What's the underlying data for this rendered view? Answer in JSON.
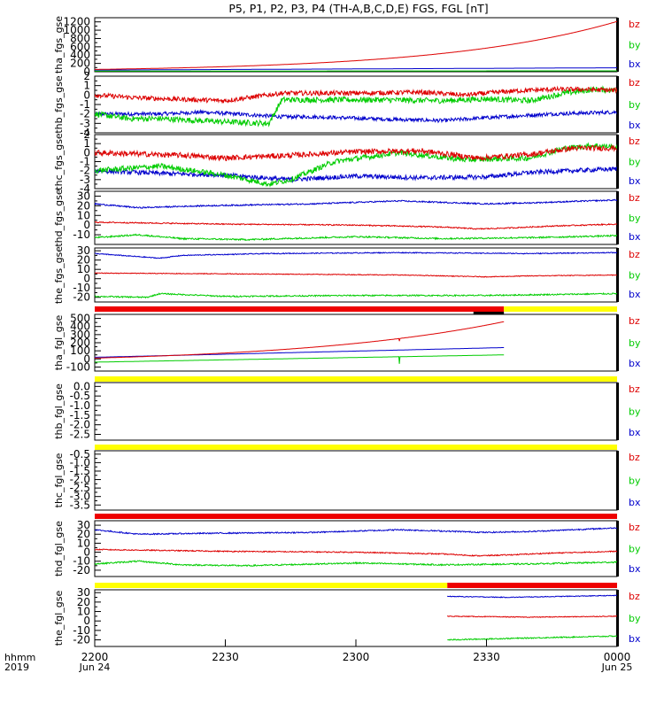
{
  "title": "P5, P1, P2, P3, P4 (TH-A,B,C,D,E) FGS, FGL [nT]",
  "colors": {
    "bz": "#dd0000",
    "by": "#00cc00",
    "bx": "#0000cc",
    "bar_red": "#ee0000",
    "bar_yellow": "#ffff00"
  },
  "time_axis": {
    "ticks": [
      "2200",
      "2230",
      "2300",
      "2330",
      "0000"
    ],
    "dates": [
      "Jun 24",
      "",
      "",
      "",
      "Jun 25"
    ],
    "label_top": "hhmm",
    "label_bottom": "2019",
    "range_minutes": [
      0,
      120
    ]
  },
  "chart_data": [
    {
      "type": "line",
      "ylabel": "tha_fgs_gse",
      "ylim": [
        0,
        1300
      ],
      "yticks": [
        "0",
        "200",
        "400",
        "600",
        "800",
        "1000",
        "1200"
      ],
      "ytick_values": [
        0,
        200,
        400,
        600,
        800,
        1000,
        1200
      ],
      "series": [
        {
          "name": "bz",
          "shape": "exp",
          "x": [
            0,
            120
          ],
          "y": [
            55,
            1210
          ],
          "k": 3.0
        },
        {
          "name": "by",
          "shape": "line",
          "x": [
            0,
            120
          ],
          "y": [
            15,
            22
          ]
        },
        {
          "name": "bx",
          "shape": "line",
          "x": [
            0,
            120
          ],
          "y": [
            40,
            95
          ]
        }
      ]
    },
    {
      "type": "line",
      "ylabel": "thb_fgs_gse",
      "ylim": [
        -4,
        2
      ],
      "yticks": [
        "-4",
        "-3",
        "-2",
        "-1",
        "0",
        "1",
        "2"
      ],
      "ytick_values": [
        -4,
        -3,
        -2,
        -1,
        0,
        1,
        2
      ],
      "series": [
        {
          "name": "bz",
          "shape": "noisy",
          "x": [
            0,
            10,
            30,
            43,
            60,
            75,
            85,
            95,
            105,
            112,
            120
          ],
          "y": [
            0.0,
            -0.3,
            -0.6,
            0.2,
            0.2,
            0.3,
            0.0,
            0.4,
            0.6,
            0.6,
            0.5
          ],
          "noise": 0.25
        },
        {
          "name": "by",
          "shape": "noisy",
          "x": [
            0,
            8,
            15,
            28,
            40,
            43,
            50,
            65,
            80,
            90,
            100,
            108,
            115,
            120
          ],
          "y": [
            -2.0,
            -2.5,
            -2.5,
            -2.8,
            -3.0,
            -0.5,
            -0.5,
            -0.5,
            -0.6,
            -0.4,
            -0.6,
            0.2,
            0.6,
            0.5
          ],
          "noise": 0.3
        },
        {
          "name": "bx",
          "shape": "noisy",
          "x": [
            0,
            15,
            25,
            43,
            50,
            70,
            80,
            90,
            105,
            120
          ],
          "y": [
            -2.0,
            -2.0,
            -1.8,
            -2.3,
            -2.3,
            -2.6,
            -2.7,
            -2.4,
            -2.0,
            -1.8
          ],
          "noise": 0.2
        }
      ]
    },
    {
      "type": "line",
      "ylabel": "thc_fgs_gse",
      "ylim": [
        -4,
        2
      ],
      "yticks": [
        "-4",
        "-3",
        "-2",
        "-1",
        "0",
        "1",
        "2"
      ],
      "ytick_values": [
        -4,
        -3,
        -2,
        -1,
        0,
        1,
        2
      ],
      "series": [
        {
          "name": "bz",
          "shape": "noisy",
          "x": [
            0,
            20,
            30,
            45,
            60,
            75,
            88,
            100,
            110,
            120
          ],
          "y": [
            0.0,
            -0.3,
            -0.6,
            -0.3,
            0.1,
            0.2,
            -0.6,
            -0.2,
            0.5,
            0.5
          ],
          "noise": 0.3
        },
        {
          "name": "by",
          "shape": "noisy",
          "x": [
            0,
            15,
            30,
            40,
            45,
            55,
            70,
            85,
            100,
            108,
            115,
            120
          ],
          "y": [
            -2.0,
            -1.5,
            -2.5,
            -3.5,
            -3.0,
            -1.0,
            0.0,
            -0.8,
            -0.6,
            0.5,
            0.8,
            0.6
          ],
          "noise": 0.3
        },
        {
          "name": "bx",
          "shape": "noisy",
          "x": [
            0,
            15,
            30,
            45,
            60,
            75,
            90,
            100,
            110,
            120
          ],
          "y": [
            -2.0,
            -2.3,
            -2.5,
            -3.0,
            -2.6,
            -2.8,
            -2.7,
            -2.2,
            -2.0,
            -1.8
          ],
          "noise": 0.25
        }
      ]
    },
    {
      "type": "line",
      "ylabel": "thd_fgs_gse",
      "ylim": [
        -20,
        35
      ],
      "yticks": [
        "-10",
        "0",
        "10",
        "20",
        "30"
      ],
      "ytick_values": [
        -10,
        0,
        10,
        20,
        30
      ],
      "series": [
        {
          "name": "bz",
          "shape": "noisy",
          "x": [
            0,
            30,
            60,
            70,
            80,
            88,
            95,
            105,
            120
          ],
          "y": [
            3,
            1,
            0,
            -1,
            -2,
            -4,
            -3,
            -1,
            1
          ],
          "noise": 0.6
        },
        {
          "name": "by",
          "shape": "noisy",
          "x": [
            0,
            10,
            20,
            35,
            60,
            80,
            100,
            120
          ],
          "y": [
            -13,
            -10,
            -14,
            -15,
            -12,
            -14,
            -13,
            -11
          ],
          "noise": 0.8
        },
        {
          "name": "bx",
          "shape": "noisy",
          "x": [
            0,
            10,
            25,
            50,
            70,
            90,
            100,
            120
          ],
          "y": [
            22,
            18,
            20,
            22,
            25,
            22,
            23,
            26
          ],
          "noise": 0.7
        }
      ]
    },
    {
      "type": "line",
      "ylabel": "the_fgs_gse",
      "ylim": [
        -25,
        33
      ],
      "yticks": [
        "-20",
        "-10",
        "0",
        "10",
        "20",
        "30"
      ],
      "ytick_values": [
        -20,
        -10,
        0,
        10,
        20,
        30
      ],
      "series": [
        {
          "name": "bz",
          "shape": "noisy",
          "x": [
            0,
            40,
            70,
            90,
            100,
            120
          ],
          "y": [
            6,
            5,
            4,
            2,
            3,
            4
          ],
          "noise": 0.4
        },
        {
          "name": "by",
          "shape": "noisy",
          "x": [
            0,
            12,
            15,
            30,
            60,
            90,
            120
          ],
          "y": [
            -19,
            -20,
            -16,
            -19,
            -18,
            -18,
            -16
          ],
          "noise": 0.7
        },
        {
          "name": "bx",
          "shape": "noisy",
          "x": [
            0,
            15,
            20,
            40,
            70,
            100,
            120
          ],
          "y": [
            27,
            22,
            25,
            27,
            28,
            27,
            28
          ],
          "noise": 0.5
        }
      ]
    },
    {
      "type": "line",
      "ylabel": "tha_fgl_gse",
      "ylim": [
        -150,
        550
      ],
      "yticks": [
        "-100",
        "0",
        "100",
        "200",
        "300",
        "400",
        "500"
      ],
      "ytick_values": [
        -100,
        0,
        100,
        200,
        300,
        400,
        500
      ],
      "series": [
        {
          "name": "bz",
          "shape": "exp",
          "x": [
            0,
            94
          ],
          "y": [
            10,
            460
          ],
          "k": 2.0,
          "spike": {
            "x": 70,
            "to": 220
          }
        },
        {
          "name": "by",
          "shape": "line",
          "x": [
            0,
            94
          ],
          "y": [
            -40,
            50
          ],
          "spike": {
            "x": 70,
            "to": -60
          }
        },
        {
          "name": "bx",
          "shape": "line",
          "x": [
            0,
            94
          ],
          "y": [
            20,
            140
          ]
        }
      ]
    },
    {
      "type": "line",
      "ylabel": "thb_fgl_gse",
      "ylim": [
        -2.8,
        0.2
      ],
      "yticks": [
        "-2.5",
        "-2.0",
        "-1.5",
        "-1.0",
        "-0.5",
        "0.0"
      ],
      "ytick_values": [
        -2.5,
        -2.0,
        -1.5,
        -1.0,
        -0.5,
        0.0
      ],
      "series": []
    },
    {
      "type": "line",
      "ylabel": "thc_fgl_gse",
      "ylim": [
        -3.8,
        -0.3
      ],
      "yticks": [
        "-3.5",
        "-3.0",
        "-2.5",
        "-2.0",
        "-1.5",
        "-1.0",
        "-0.5"
      ],
      "ytick_values": [
        -3.5,
        -3.0,
        -2.5,
        -2.0,
        -1.5,
        -1.0,
        -0.5
      ],
      "series": []
    },
    {
      "type": "line",
      "ylabel": "thd_fgl_gse",
      "ylim": [
        -27,
        35
      ],
      "yticks": [
        "-20",
        "-10",
        "0",
        "10",
        "20",
        "30"
      ],
      "ytick_values": [
        -20,
        -10,
        0,
        10,
        20,
        30
      ],
      "series": [
        {
          "name": "bz",
          "shape": "noisy",
          "x": [
            0,
            30,
            60,
            70,
            80,
            88,
            95,
            105,
            120
          ],
          "y": [
            3,
            1,
            0,
            -1,
            -2,
            -4,
            -3,
            -1,
            1
          ],
          "noise": 0.6
        },
        {
          "name": "by",
          "shape": "noisy",
          "x": [
            0,
            10,
            20,
            35,
            60,
            80,
            100,
            120
          ],
          "y": [
            -13,
            -10,
            -14,
            -15,
            -12,
            -14,
            -13,
            -11
          ],
          "noise": 0.8
        },
        {
          "name": "bx",
          "shape": "noisy",
          "x": [
            0,
            10,
            25,
            50,
            70,
            90,
            100,
            120
          ],
          "y": [
            25,
            20,
            21,
            22,
            25,
            22,
            23,
            27
          ],
          "noise": 0.7
        }
      ]
    },
    {
      "type": "line",
      "ylabel": "the_fgl_gse",
      "ylim": [
        -27,
        33
      ],
      "yticks": [
        "-20",
        "-10",
        "0",
        "10",
        "20",
        "30"
      ],
      "ytick_values": [
        -20,
        -10,
        0,
        10,
        20,
        30
      ],
      "series": [
        {
          "name": "bz",
          "shape": "noisy",
          "x": [
            81,
            100,
            120
          ],
          "y": [
            5,
            4,
            5
          ],
          "noise": 0.4
        },
        {
          "name": "by",
          "shape": "noisy",
          "x": [
            81,
            100,
            120
          ],
          "y": [
            -20,
            -18,
            -16
          ],
          "noise": 0.6
        },
        {
          "name": "bx",
          "shape": "noisy",
          "x": [
            81,
            95,
            120
          ],
          "y": [
            26,
            25,
            27
          ],
          "noise": 0.4
        }
      ]
    }
  ],
  "mode_bars": [
    {
      "after_panel": 4,
      "segments": [
        {
          "from": 0,
          "to": 94,
          "color": "red"
        },
        {
          "from": 94,
          "to": 120,
          "color": "yellow"
        }
      ],
      "marker": {
        "from": 87,
        "to": 94
      }
    },
    {
      "after_panel": 5,
      "segments": [
        {
          "from": 0,
          "to": 120,
          "color": "yellow"
        }
      ]
    },
    {
      "after_panel": 6,
      "segments": [
        {
          "from": 0,
          "to": 120,
          "color": "yellow"
        }
      ]
    },
    {
      "after_panel": 7,
      "segments": [
        {
          "from": 0,
          "to": 120,
          "color": "red"
        }
      ]
    },
    {
      "after_panel": 8,
      "segments": [
        {
          "from": 0,
          "to": 81,
          "color": "yellow"
        },
        {
          "from": 81,
          "to": 120,
          "color": "red"
        }
      ]
    }
  ],
  "legend": [
    "bz",
    "by",
    "bx"
  ]
}
